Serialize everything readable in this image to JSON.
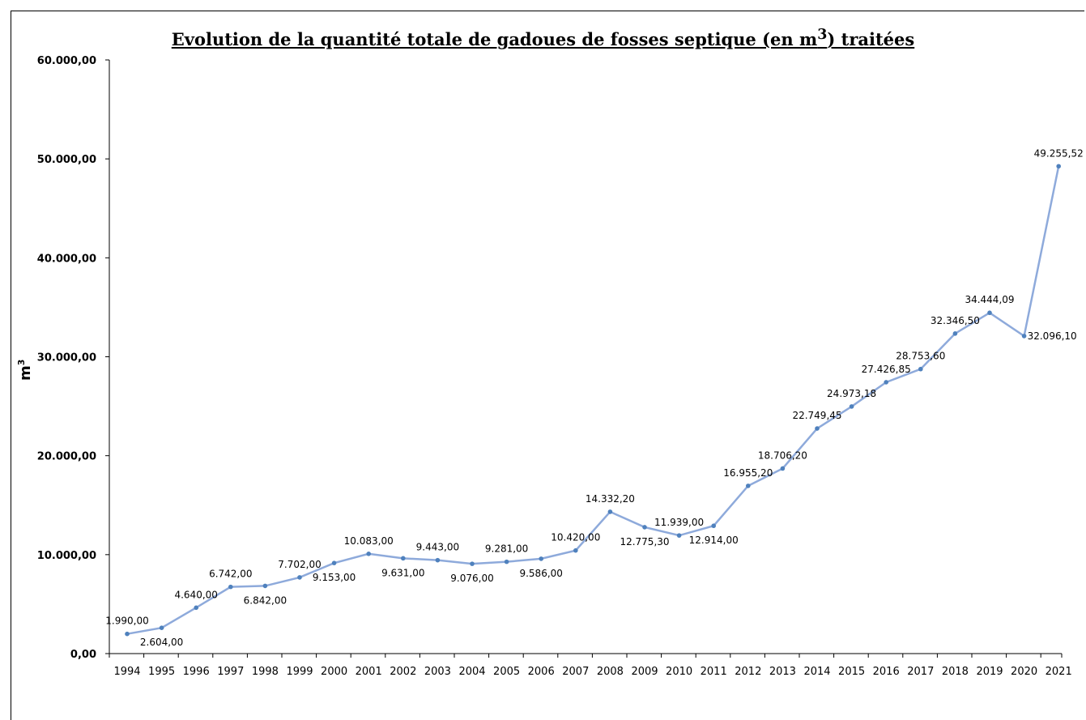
{
  "chart_data": {
    "type": "line",
    "title": "Evolution de la quantité totale de gadoues de fosses septique (en m",
    "title_sup": "3",
    "title_end": ") traitées",
    "ylabel": "m",
    "ylabel_sup": "3",
    "ylim": [
      0,
      60000
    ],
    "yticks": [
      0,
      10000,
      20000,
      30000,
      40000,
      50000,
      60000
    ],
    "ytick_labels": [
      "0,00",
      "10.000,00",
      "20.000,00",
      "30.000,00",
      "40.000,00",
      "50.000,00",
      "60.000,00"
    ],
    "categories": [
      "1994",
      "1995",
      "1996",
      "1997",
      "1998",
      "1999",
      "2000",
      "2001",
      "2002",
      "2003",
      "2004",
      "2005",
      "2006",
      "2007",
      "2008",
      "2009",
      "2010",
      "2011",
      "2012",
      "2013",
      "2014",
      "2015",
      "2016",
      "2017",
      "2018",
      "2019",
      "2020",
      "2021"
    ],
    "values": [
      1990,
      2604,
      4640,
      6742,
      6842,
      7702,
      9153,
      10083,
      9631,
      9443,
      9076,
      9281,
      9586,
      10420,
      14332.2,
      12775.3,
      11939,
      12914,
      16955.2,
      18706.2,
      22749.45,
      24973.18,
      27426.85,
      28753.6,
      32346.5,
      34444.09,
      32096.1,
      49255.52
    ],
    "data_labels": [
      "1.990,00",
      "2.604,00",
      "4.640,00",
      "6.742,00",
      "6.842,00",
      "7.702,00",
      "9.153,00",
      "10.083,00",
      "9.631,00",
      "9.443,00",
      "9.076,00",
      "9.281,00",
      "9.586,00",
      "10.420,00",
      "14.332,20",
      "12.775,30",
      "11.939,00",
      "12.914,00",
      "16.955,20",
      "18.706,20",
      "22.749,45",
      "24.973,18",
      "27.426,85",
      "28.753,60",
      "32.346,50",
      "34.444,09",
      "32.096,10",
      "49.255,52"
    ],
    "label_pos": [
      "above",
      "below",
      "above",
      "above",
      "below",
      "above",
      "below",
      "above",
      "below",
      "above",
      "below",
      "above",
      "below",
      "above",
      "above",
      "below",
      "above",
      "below",
      "above",
      "above",
      "above",
      "above",
      "above",
      "above",
      "above",
      "above",
      "right",
      "above"
    ],
    "line_color": "#8eaadb",
    "grid": false,
    "legend": "none"
  }
}
